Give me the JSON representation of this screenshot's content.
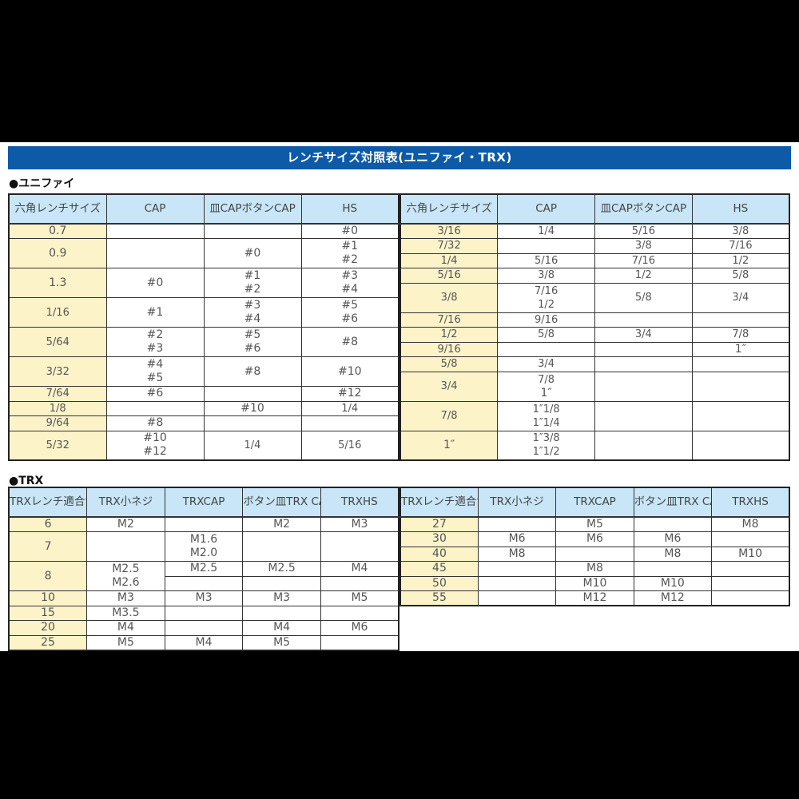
{
  "title": "レンチサイズ対照表(ユニファイ・TRX)",
  "colors": {
    "title_bar": "#0c5aa8",
    "header_bg": "#c8e6f7",
    "size_col_bg": "#fcf3c9"
  },
  "unified": {
    "heading": "●ユニファイ",
    "headers": [
      [
        "六角レンチ",
        "サイズ"
      ],
      [
        "CAP"
      ],
      [
        "皿CAP",
        "ボタンCAP"
      ],
      [
        "HS"
      ]
    ],
    "left": {
      "rows": [
        {
          "size": "0.7",
          "units": 1,
          "cols": [
            [],
            [],
            [
              "#0"
            ]
          ]
        },
        {
          "size": "0.9",
          "units": 2,
          "cols": [
            [],
            [
              "#0"
            ],
            [
              "#1",
              "#2"
            ]
          ]
        },
        {
          "size": "1.3",
          "units": 2,
          "cols": [
            [
              "#0"
            ],
            [
              "#1",
              "#2"
            ],
            [
              "#3",
              "#4"
            ]
          ]
        },
        {
          "size": "1/16",
          "units": 2,
          "cols": [
            [
              "#1"
            ],
            [
              "#3",
              "#4"
            ],
            [
              "#5",
              "#6"
            ]
          ]
        },
        {
          "size": "5/64",
          "units": 2,
          "cols": [
            [
              "#2",
              "#3"
            ],
            [
              "#5",
              "#6"
            ],
            [
              "#8"
            ]
          ]
        },
        {
          "size": "3/32",
          "units": 2,
          "cols": [
            [
              "#4",
              "#5"
            ],
            [
              "#8"
            ],
            [
              "#10"
            ]
          ]
        },
        {
          "size": "7/64",
          "units": 1,
          "cols": [
            [
              "#6"
            ],
            [],
            [
              "#12"
            ]
          ]
        },
        {
          "size": "1/8",
          "units": 1,
          "cols": [
            [],
            [
              "#10"
            ],
            [
              "1/4"
            ]
          ]
        },
        {
          "size": "9/64",
          "units": 1,
          "cols": [
            [
              "#8"
            ],
            [],
            []
          ]
        },
        {
          "size": "5/32",
          "units": 2,
          "cols": [
            [
              "#10",
              "#12"
            ],
            [
              "1/4"
            ],
            [
              "5/16"
            ]
          ]
        }
      ]
    },
    "right": {
      "rows": [
        {
          "size": "3/16",
          "units": 1,
          "cols": [
            [
              "1/4"
            ],
            [
              "5/16"
            ],
            [
              "3/8"
            ]
          ]
        },
        {
          "size": "7/32",
          "units": 1,
          "cols": [
            [],
            [
              "3/8"
            ],
            [
              "7/16"
            ]
          ]
        },
        {
          "size": "1/4",
          "units": 1,
          "cols": [
            [
              "5/16"
            ],
            [
              "7/16"
            ],
            [
              "1/2"
            ]
          ]
        },
        {
          "size": "5/16",
          "units": 1,
          "cols": [
            [
              "3/8"
            ],
            [
              "1/2"
            ],
            [
              "5/8"
            ]
          ]
        },
        {
          "size": "3/8",
          "units": 2,
          "cols": [
            [
              "7/16",
              "1/2"
            ],
            [
              "5/8"
            ],
            [
              "3/4"
            ]
          ]
        },
        {
          "size": "7/16",
          "units": 1,
          "cols": [
            [
              "9/16"
            ],
            [],
            []
          ]
        },
        {
          "size": "1/2",
          "units": 1,
          "cols": [
            [
              "5/8"
            ],
            [
              "3/4"
            ],
            [
              "7/8"
            ]
          ]
        },
        {
          "size": "9/16",
          "units": 1,
          "cols": [
            [],
            [],
            [
              "1″"
            ]
          ]
        },
        {
          "size": "5/8",
          "units": 1,
          "cols": [
            [
              "3/4"
            ],
            [],
            []
          ]
        },
        {
          "size": "3/4",
          "units": 2,
          "cols": [
            [
              "7/8",
              "1″"
            ],
            [],
            []
          ]
        },
        {
          "size": "7/8",
          "units": 2,
          "cols": [
            [
              "1″1/8",
              "1″1/4"
            ],
            [],
            []
          ]
        },
        {
          "size": "1″",
          "units": 2,
          "cols": [
            [
              "1″3/8",
              "1″1/2"
            ],
            [],
            []
          ]
        }
      ]
    }
  },
  "trx": {
    "heading": "●TRX",
    "headers": [
      [
        "TRXレンチ",
        "適合サイズ"
      ],
      [
        "TRX",
        "小ネジ"
      ],
      [
        "TRX",
        "CAP"
      ],
      [
        "ボタン皿",
        "TRX CAP"
      ],
      [
        "TRX",
        "HS"
      ]
    ],
    "left": {
      "rows": [
        {
          "size": "6",
          "units": 1,
          "cols": [
            [
              "M2"
            ],
            [],
            [
              "M2"
            ],
            [
              "M3"
            ]
          ]
        },
        {
          "size": "7",
          "units": 2,
          "cols": [
            [],
            [
              "M1.6",
              "M2.0"
            ],
            [],
            []
          ]
        },
        {
          "size": "8",
          "units": 2,
          "cols": [
            [
              "M2.5",
              "M2.6"
            ],
            {
              "split": [
                [
                  "M2.5"
                ],
                []
              ]
            },
            {
              "split": [
                [
                  "M2.5"
                ],
                []
              ]
            },
            {
              "split": [
                [
                  "M4"
                ],
                []
              ]
            }
          ]
        },
        {
          "size": "10",
          "units": 1,
          "cols": [
            [
              "M3"
            ],
            [
              "M3"
            ],
            [
              "M3"
            ],
            [
              "M5"
            ]
          ]
        },
        {
          "size": "15",
          "units": 1,
          "cols": [
            [
              "M3.5"
            ],
            [],
            [],
            []
          ]
        },
        {
          "size": "20",
          "units": 1,
          "cols": [
            [
              "M4"
            ],
            [],
            [
              "M4"
            ],
            [
              "M6"
            ]
          ]
        },
        {
          "size": "25",
          "units": 1,
          "cols": [
            [
              "M5"
            ],
            [
              "M4"
            ],
            [
              "M5"
            ],
            []
          ]
        }
      ]
    },
    "right": {
      "rows": [
        {
          "size": "27",
          "units": 1,
          "cols": [
            [],
            [
              "M5"
            ],
            [],
            [
              "M8"
            ]
          ]
        },
        {
          "size": "30",
          "units": 1,
          "cols": [
            [
              "M6"
            ],
            [
              "M6"
            ],
            [
              "M6"
            ],
            []
          ]
        },
        {
          "size": "40",
          "units": 1,
          "cols": [
            [
              "M8"
            ],
            [],
            [
              "M8"
            ],
            [
              "M10"
            ]
          ]
        },
        {
          "size": "45",
          "units": 1,
          "cols": [
            [],
            [
              "M8"
            ],
            [],
            []
          ]
        },
        {
          "size": "50",
          "units": 1,
          "cols": [
            [],
            [
              "M10"
            ],
            [
              "M10"
            ],
            []
          ]
        },
        {
          "size": "55",
          "units": 1,
          "cols": [
            [],
            [
              "M12"
            ],
            [
              "M12"
            ],
            []
          ]
        }
      ]
    }
  }
}
